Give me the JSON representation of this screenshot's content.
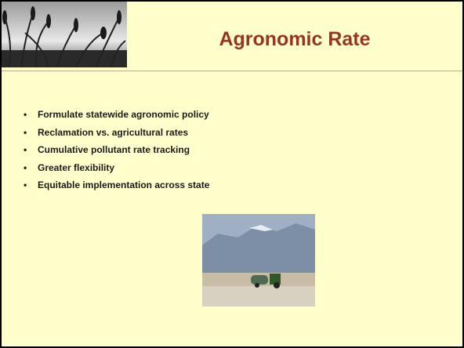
{
  "header": {
    "title": "Agronomic Rate"
  },
  "bullets": [
    "Formulate statewide agronomic policy",
    "Reclamation vs. agricultural rates",
    "Cumulative pollutant rate tracking",
    "Greater flexibility",
    "Equitable implementation across state"
  ]
}
